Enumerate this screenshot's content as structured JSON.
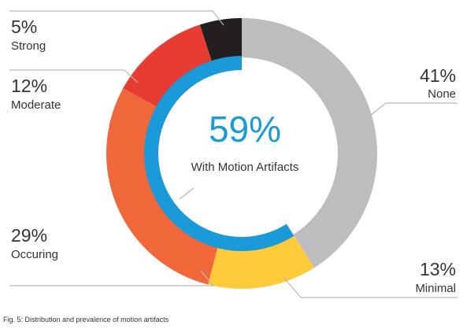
{
  "chart_data": {
    "type": "pie",
    "variant": "donut",
    "slices": [
      {
        "label": "None",
        "value": 41,
        "display": "41%",
        "color": "#bdbdbf"
      },
      {
        "label": "Minimal",
        "value": 13,
        "display": "13%",
        "color": "#ffcb3a"
      },
      {
        "label": "Occuring",
        "value": 29,
        "display": "29%",
        "color": "#f0683a"
      },
      {
        "label": "Moderate",
        "value": 12,
        "display": "12%",
        "color": "#e73c32"
      },
      {
        "label": "Strong",
        "value": 5,
        "display": "5%",
        "color": "#231f20"
      }
    ],
    "inner_ring": {
      "value": 59,
      "color": "#1a9ad9"
    },
    "center": {
      "value": "59%",
      "label": "With Motion Artifacts"
    },
    "caption": "Fig. 5: Distribution and prevalence of motion artifacts"
  }
}
